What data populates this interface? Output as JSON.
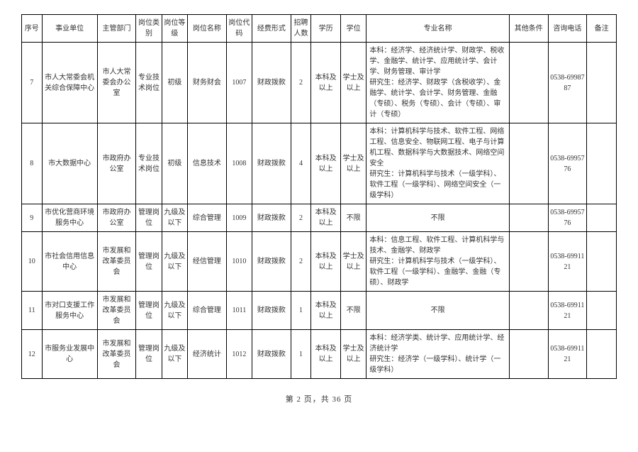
{
  "headers": {
    "seq": "序号",
    "unit": "事业单位",
    "dept": "主管部门",
    "cat": "岗位类别",
    "grade": "岗位等级",
    "posname": "岗位名称",
    "code": "岗位代码",
    "fund": "经费形式",
    "num": "招聘人数",
    "edu": "学历",
    "degree": "学位",
    "major": "专业名称",
    "other": "其他条件",
    "phone": "咨询电话",
    "note": "备注"
  },
  "rows": [
    {
      "seq": "7",
      "unit": "市人大常委会机关综合保障中心",
      "dept": "市人大常委会办公室",
      "cat": "专业技术岗位",
      "grade": "初级",
      "posname": "财务财会",
      "code": "1007",
      "fund": "财政拨款",
      "num": "2",
      "edu": "本科及以上",
      "degree": "学士及以上",
      "major": "本科：经济学、经济统计学、财政学、税收学、金融学、统计学、应用统计学、会计学、财务管理、审计学\n研究生：经济学、财政学（含税收学）、金融学、统计学、会计学、财务管理、金融（专硕）、税务（专硕）、会计（专硕）、审计（专硕）",
      "other": "",
      "phone": "0538-6998787",
      "note": ""
    },
    {
      "seq": "8",
      "unit": "市大数据中心",
      "dept": "市政府办公室",
      "cat": "专业技术岗位",
      "grade": "初级",
      "posname": "信息技术",
      "code": "1008",
      "fund": "财政拨款",
      "num": "4",
      "edu": "本科及以上",
      "degree": "学士及以上",
      "major": "本科：计算机科学与技术、软件工程、网络工程、信息安全、物联网工程、电子与计算机工程、数据科学与大数据技术、网络空间安全\n研究生：计算机科学与技术（一级学科）、软件工程（一级学科）、网络空间安全（一级学科）",
      "other": "",
      "phone": "0538-6995776",
      "note": ""
    },
    {
      "seq": "9",
      "unit": "市优化营商环境服务中心",
      "dept": "市政府办公室",
      "cat": "管理岗位",
      "grade": "九级及以下",
      "posname": "综合管理",
      "code": "1009",
      "fund": "财政拨款",
      "num": "2",
      "edu": "本科及以上",
      "degree": "不限",
      "major": "不限",
      "other": "",
      "phone": "0538-6995776",
      "note": ""
    },
    {
      "seq": "10",
      "unit": "市社会信用信息中心",
      "dept": "市发展和改革委员会",
      "cat": "管理岗位",
      "grade": "九级及以下",
      "posname": "经信管理",
      "code": "1010",
      "fund": "财政拨款",
      "num": "2",
      "edu": "本科及以上",
      "degree": "学士及以上",
      "major": "本科：信息工程、软件工程、计算机科学与技术、金融学、财政学\n研究生：计算机科学与技术（一级学科）、软件工程（一级学科）、金融学、金融（专硕）、财政学",
      "other": "",
      "phone": "0538-6991121",
      "note": ""
    },
    {
      "seq": "11",
      "unit": "市对口支援工作服务中心",
      "dept": "市发展和改革委员会",
      "cat": "管理岗位",
      "grade": "九级及以下",
      "posname": "综合管理",
      "code": "1011",
      "fund": "财政拨款",
      "num": "1",
      "edu": "本科及以上",
      "degree": "不限",
      "major": "不限",
      "other": "",
      "phone": "0538-6991121",
      "note": ""
    },
    {
      "seq": "12",
      "unit": "市服务业发展中心",
      "dept": "市发展和改革委员会",
      "cat": "管理岗位",
      "grade": "九级及以下",
      "posname": "经济统计",
      "code": "1012",
      "fund": "财政拨款",
      "num": "1",
      "edu": "本科及以上",
      "degree": "学士及以上",
      "major": "本科：经济学类、统计学、应用统计学、经济统计学\n研究生：经济学（一级学科）、统计学（一级学科）",
      "other": "",
      "phone": "0538-6991121",
      "note": ""
    }
  ],
  "footer": "第 2 页，共 36 页"
}
